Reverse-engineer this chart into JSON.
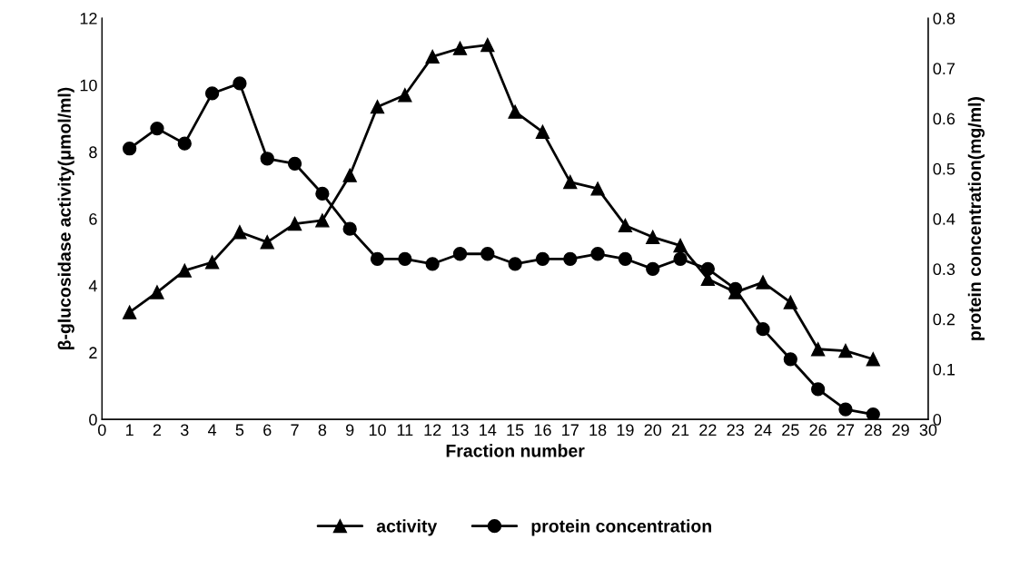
{
  "chart_data": {
    "type": "line",
    "xlabel": "Fraction number",
    "ylabel": "β-glucosidase activity(μmol/ml)",
    "y2label": "protein concentration(mg/ml)",
    "xlim": [
      0,
      30
    ],
    "xticks": [
      0,
      1,
      2,
      3,
      4,
      5,
      6,
      7,
      8,
      9,
      10,
      11,
      12,
      13,
      14,
      15,
      16,
      17,
      18,
      19,
      20,
      21,
      22,
      23,
      24,
      25,
      26,
      27,
      28,
      29,
      30
    ],
    "ylim": [
      0,
      12
    ],
    "yticks": [
      0,
      2,
      4,
      6,
      8,
      10,
      12
    ],
    "y2lim": [
      0,
      0.8
    ],
    "y2ticks": [
      0,
      0.1,
      0.2,
      0.3,
      0.4,
      0.5,
      0.6,
      0.7,
      0.8
    ],
    "x": [
      1,
      2,
      3,
      4,
      5,
      6,
      7,
      8,
      9,
      10,
      11,
      12,
      13,
      14,
      15,
      16,
      17,
      18,
      19,
      20,
      21,
      22,
      23,
      24,
      25,
      26,
      27,
      28
    ],
    "series": [
      {
        "name": "activity",
        "color": "#000000",
        "marker": "triangle",
        "values": [
          3.2,
          3.8,
          4.45,
          4.7,
          5.6,
          5.3,
          5.85,
          5.95,
          7.3,
          9.35,
          9.7,
          10.85,
          11.1,
          11.2,
          9.2,
          8.6,
          7.1,
          6.9,
          5.8,
          5.45,
          5.2,
          4.2,
          3.8,
          4.1,
          3.5,
          2.1,
          2.05,
          1.8
        ]
      },
      {
        "name": "protein concentration",
        "color": "#000000",
        "marker": "circle",
        "axis": "y2",
        "values": [
          0.54,
          0.58,
          0.55,
          0.65,
          0.67,
          0.52,
          0.51,
          0.45,
          0.38,
          0.32,
          0.32,
          0.31,
          0.33,
          0.33,
          0.31,
          0.32,
          0.32,
          0.33,
          0.32,
          0.3,
          0.32,
          0.3,
          0.26,
          0.18,
          0.12,
          0.06,
          0.02,
          0.01
        ]
      }
    ],
    "legend": "bottom",
    "grid": false
  }
}
